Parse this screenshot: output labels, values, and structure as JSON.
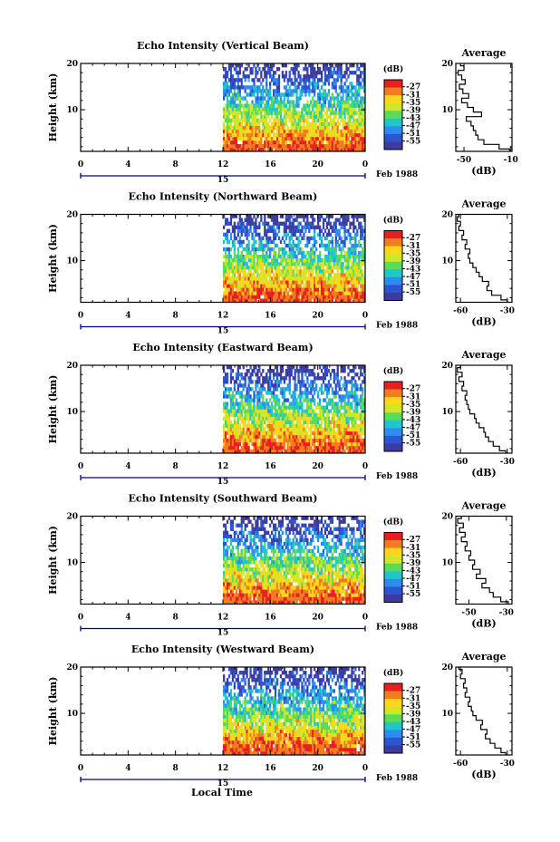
{
  "chart_data": [
    {
      "type": "heatmap",
      "title": "Echo Intensity (Vertical Beam)",
      "ylabel": "Height (km)",
      "y_ticks": [
        "10",
        "20"
      ],
      "x_ticks": [
        "0",
        "4",
        "8",
        "12",
        "16",
        "20",
        "0"
      ],
      "x_range": [
        0,
        24
      ],
      "y_range": [
        1,
        20
      ],
      "date_label": "15",
      "month_year": "Feb 1988",
      "data_x_start": 12,
      "colorbar": {
        "unit": "(dB)",
        "labels": [
          "-27",
          "-31",
          "-35",
          "-39",
          "-43",
          "-47",
          "-51",
          "-55"
        ]
      },
      "average": {
        "title": "Average",
        "xlabel": "(dB)",
        "x_ticks": [
          "-50",
          "-10"
        ],
        "x_tick_values": [
          -50,
          -10
        ],
        "xlim": [
          -57,
          -9
        ],
        "y_ticks": [
          "10",
          "20"
        ],
        "heights": [
          1,
          2,
          3,
          4,
          5,
          6,
          7,
          8,
          9,
          10,
          11,
          12,
          13,
          14,
          15,
          16,
          17,
          18,
          19,
          20
        ],
        "values": [
          -11,
          -20,
          -33,
          -38,
          -40,
          -42,
          -44,
          -48,
          -35,
          -42,
          -47,
          -52,
          -46,
          -51,
          -54,
          -49,
          -52,
          -55,
          -50,
          -53
        ]
      }
    },
    {
      "type": "heatmap",
      "title": "Echo Intensity (Northward Beam)",
      "ylabel": "Height (km)",
      "y_ticks": [
        "10",
        "20"
      ],
      "x_ticks": [
        "0",
        "4",
        "8",
        "12",
        "16",
        "20",
        "0"
      ],
      "x_range": [
        0,
        24
      ],
      "y_range": [
        1,
        20
      ],
      "date_label": "15",
      "month_year": "Feb 1988",
      "data_x_start": 12,
      "colorbar": {
        "unit": "(dB)",
        "labels": [
          "-27",
          "-31",
          "-35",
          "-39",
          "-43",
          "-47",
          "-51",
          "-55"
        ]
      },
      "average": {
        "title": "Average",
        "xlabel": "(dB)",
        "x_ticks": [
          "-60",
          "-30"
        ],
        "x_tick_values": [
          -60,
          -30
        ],
        "xlim": [
          -63,
          -27
        ],
        "y_ticks": [
          "10",
          "20"
        ],
        "heights": [
          1,
          2,
          3,
          4,
          5,
          6,
          7,
          8,
          9,
          10,
          11,
          12,
          13,
          14,
          15,
          16,
          17,
          18,
          19,
          20
        ],
        "values": [
          -30,
          -34,
          -40,
          -43,
          -42,
          -46,
          -48,
          -50,
          -52,
          -54,
          -55,
          -54,
          -57,
          -56,
          -59,
          -58,
          -61,
          -60,
          -62,
          -61
        ]
      }
    },
    {
      "type": "heatmap",
      "title": "Echo Intensity (Eastward Beam)",
      "ylabel": "Height (km)",
      "y_ticks": [
        "10",
        "20"
      ],
      "x_ticks": [
        "0",
        "4",
        "8",
        "12",
        "16",
        "20",
        "0"
      ],
      "x_range": [
        0,
        24
      ],
      "y_range": [
        1,
        20
      ],
      "date_label": "15",
      "month_year": "Feb 1988",
      "data_x_start": 12,
      "colorbar": {
        "unit": "(dB)",
        "labels": [
          "-27",
          "-31",
          "-35",
          "-39",
          "-43",
          "-47",
          "-51",
          "-55"
        ]
      },
      "average": {
        "title": "Average",
        "xlabel": "(dB)",
        "x_ticks": [
          "-60",
          "-30"
        ],
        "x_tick_values": [
          -60,
          -30
        ],
        "xlim": [
          -63,
          -27
        ],
        "y_ticks": [
          "10",
          "20"
        ],
        "heights": [
          1,
          2,
          3,
          4,
          5,
          6,
          7,
          8,
          9,
          10,
          11,
          12,
          13,
          14,
          15,
          16,
          17,
          18,
          19,
          20
        ],
        "values": [
          -31,
          -35,
          -39,
          -42,
          -44,
          -45,
          -48,
          -50,
          -51,
          -54,
          -55,
          -56,
          -57,
          -56,
          -59,
          -58,
          -61,
          -59,
          -62,
          -60
        ]
      }
    },
    {
      "type": "heatmap",
      "title": "Echo Intensity (Southward Beam)",
      "ylabel": "Height (km)",
      "y_ticks": [
        "10",
        "20"
      ],
      "x_ticks": [
        "0",
        "4",
        "8",
        "12",
        "16",
        "20",
        "0"
      ],
      "x_range": [
        0,
        24
      ],
      "y_range": [
        1,
        20
      ],
      "date_label": "15",
      "month_year": "Feb 1988",
      "data_x_start": 12,
      "colorbar": {
        "unit": "(dB)",
        "labels": [
          "-27",
          "-31",
          "-35",
          "-39",
          "-43",
          "-47",
          "-51",
          "-55"
        ]
      },
      "average": {
        "title": "Average",
        "xlabel": "(dB)",
        "x_ticks": [
          "-50",
          "-30"
        ],
        "x_tick_values": [
          -50,
          -30
        ],
        "xlim": [
          -57,
          -27
        ],
        "y_ticks": [
          "10",
          "20"
        ],
        "heights": [
          1,
          2,
          3,
          4,
          5,
          6,
          7,
          8,
          9,
          10,
          11,
          12,
          13,
          14,
          15,
          16,
          17,
          18,
          19,
          20
        ],
        "values": [
          -29,
          -33,
          -37,
          -39,
          -43,
          -41,
          -46,
          -44,
          -48,
          -47,
          -50,
          -49,
          -52,
          -51,
          -54,
          -52,
          -55,
          -53,
          -56,
          -54
        ]
      }
    },
    {
      "type": "heatmap",
      "title": "Echo Intensity (Westward Beam)",
      "ylabel": "Height (km)",
      "y_ticks": [
        "10",
        "20"
      ],
      "x_ticks": [
        "0",
        "4",
        "8",
        "12",
        "16",
        "20",
        "0"
      ],
      "x_range": [
        0,
        24
      ],
      "y_range": [
        1,
        20
      ],
      "date_label": "15",
      "month_year": "Feb 1988",
      "data_x_start": 12,
      "colorbar": {
        "unit": "(dB)",
        "labels": [
          "-27",
          "-31",
          "-35",
          "-39",
          "-43",
          "-47",
          "-51",
          "-55"
        ]
      },
      "average": {
        "title": "Average",
        "xlabel": "(dB)",
        "x_ticks": [
          "-60",
          "-30"
        ],
        "x_tick_values": [
          -60,
          -30
        ],
        "xlim": [
          -63,
          -27
        ],
        "y_ticks": [
          "10",
          "20"
        ],
        "heights": [
          1,
          2,
          3,
          4,
          5,
          6,
          7,
          8,
          9,
          10,
          11,
          12,
          13,
          14,
          15,
          16,
          17,
          18,
          19,
          20
        ],
        "values": [
          -31,
          -34,
          -38,
          -41,
          -44,
          -43,
          -47,
          -46,
          -50,
          -52,
          -53,
          -55,
          -54,
          -57,
          -56,
          -58,
          -57,
          -60,
          -59,
          -61
        ]
      }
    }
  ],
  "xlabel": "Local Time",
  "colors": {
    "colormap": [
      "#e62020",
      "#f27d1e",
      "#ffd51e",
      "#d2e628",
      "#5adc5a",
      "#1ec8c8",
      "#2d8cf0",
      "#2d55d2",
      "#3c3ca0"
    ],
    "axis": "#000000",
    "date_bar": "#00008b"
  }
}
